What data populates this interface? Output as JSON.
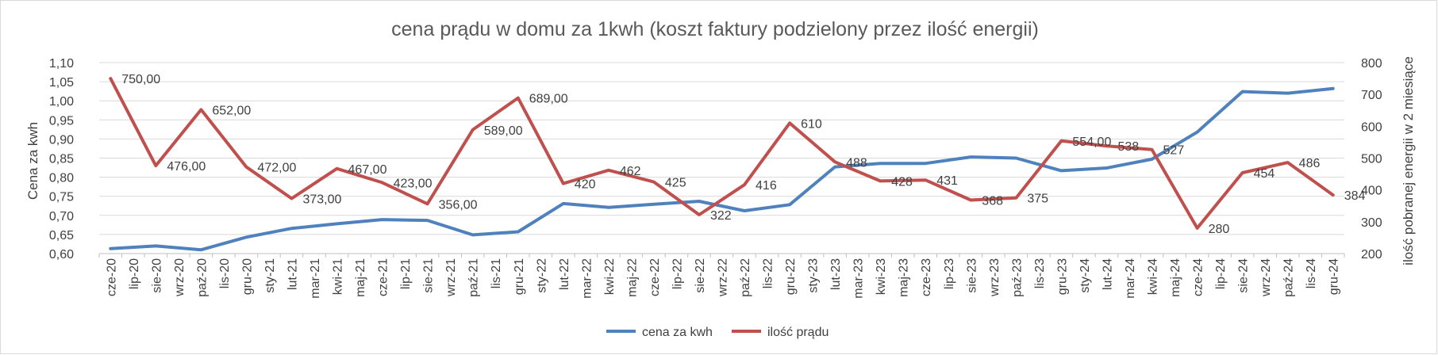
{
  "chart_data": {
    "type": "line",
    "title": "cena prądu w domu za 1kwh (koszt faktury podzielony przez ilość energii)",
    "ylabel": "Cena za kwh",
    "y2label": "ilość pobranej energii w 2 miesiące",
    "xlabel": "",
    "ylim": [
      0.6,
      1.1
    ],
    "yticks": [
      "0,60",
      "0,65",
      "0,70",
      "0,75",
      "0,80",
      "0,85",
      "0,90",
      "0,95",
      "1,00",
      "1,05",
      "1,10"
    ],
    "y2lim": [
      200,
      800
    ],
    "y2ticks": [
      "200",
      "300",
      "400",
      "500",
      "600",
      "700",
      "800"
    ],
    "grid": true,
    "legend_position": "bottom",
    "categories": [
      "cze-20",
      "lip-20",
      "sie-20",
      "wrz-20",
      "paź-20",
      "lis-20",
      "gru-20",
      "sty-21",
      "lut-21",
      "mar-21",
      "kwi-21",
      "maj-21",
      "cze-21",
      "lip-21",
      "sie-21",
      "wrz-21",
      "paź-21",
      "lis-21",
      "gru-21",
      "sty-22",
      "lut-22",
      "mar-22",
      "kwi-22",
      "maj-22",
      "cze-22",
      "lip-22",
      "sie-22",
      "wrz-22",
      "paź-22",
      "lis-22",
      "gru-22",
      "sty-23",
      "lut-23",
      "mar-23",
      "kwi-23",
      "maj-23",
      "cze-23",
      "lip-23",
      "sie-23",
      "wrz-23",
      "paź-23",
      "lis-23",
      "gru-23",
      "sty-24",
      "lut-24",
      "mar-24",
      "kwi-24",
      "maj-24",
      "cze-24",
      "lip-24",
      "sie-24",
      "wrz-24",
      "paź-24",
      "lis-24",
      "gru-24"
    ],
    "series": [
      {
        "name": "cena za kwh",
        "color": "#4f81bd",
        "axis": "left",
        "points": [
          {
            "x": "cze-20",
            "y": 0.613
          },
          {
            "x": "sie-20",
            "y": 0.62
          },
          {
            "x": "paź-20",
            "y": 0.61
          },
          {
            "x": "gru-20",
            "y": 0.643
          },
          {
            "x": "lut-21",
            "y": 0.666
          },
          {
            "x": "kwi-21",
            "y": 0.678
          },
          {
            "x": "cze-21",
            "y": 0.689
          },
          {
            "x": "sie-21",
            "y": 0.687
          },
          {
            "x": "paź-21",
            "y": 0.649
          },
          {
            "x": "gru-21",
            "y": 0.657
          },
          {
            "x": "lut-22",
            "y": 0.731
          },
          {
            "x": "kwi-22",
            "y": 0.721
          },
          {
            "x": "cze-22",
            "y": 0.729
          },
          {
            "x": "sie-22",
            "y": 0.737
          },
          {
            "x": "paź-22",
            "y": 0.712
          },
          {
            "x": "gru-22",
            "y": 0.728
          },
          {
            "x": "lut-23",
            "y": 0.827
          },
          {
            "x": "kwi-23",
            "y": 0.836
          },
          {
            "x": "cze-23",
            "y": 0.836
          },
          {
            "x": "sie-23",
            "y": 0.853
          },
          {
            "x": "paź-23",
            "y": 0.85
          },
          {
            "x": "gru-23",
            "y": 0.817
          },
          {
            "x": "lut-24",
            "y": 0.824
          },
          {
            "x": "kwi-24",
            "y": 0.847
          },
          {
            "x": "cze-24",
            "y": 0.918
          },
          {
            "x": "sie-24",
            "y": 1.024
          },
          {
            "x": "paź-24",
            "y": 1.02
          },
          {
            "x": "gru-24",
            "y": 1.032
          }
        ]
      },
      {
        "name": "ilość prądu",
        "color": "#c0504d",
        "axis": "right",
        "points": [
          {
            "x": "cze-20",
            "y": 750,
            "label": "750,00"
          },
          {
            "x": "sie-20",
            "y": 476,
            "label": "476,00"
          },
          {
            "x": "paź-20",
            "y": 652,
            "label": "652,00"
          },
          {
            "x": "gru-20",
            "y": 472,
            "label": "472,00"
          },
          {
            "x": "lut-21",
            "y": 373,
            "label": "373,00"
          },
          {
            "x": "kwi-21",
            "y": 467,
            "label": "467,00"
          },
          {
            "x": "cze-21",
            "y": 423,
            "label": "423,00"
          },
          {
            "x": "sie-21",
            "y": 356,
            "label": "356,00"
          },
          {
            "x": "paź-21",
            "y": 589,
            "label": "589,00"
          },
          {
            "x": "gru-21",
            "y": 689,
            "label": "689,00"
          },
          {
            "x": "lut-22",
            "y": 420,
            "label": "420"
          },
          {
            "x": "kwi-22",
            "y": 462,
            "label": "462"
          },
          {
            "x": "cze-22",
            "y": 425,
            "label": "425"
          },
          {
            "x": "sie-22",
            "y": 322,
            "label": "322"
          },
          {
            "x": "paź-22",
            "y": 416,
            "label": "416"
          },
          {
            "x": "gru-22",
            "y": 610,
            "label": "610"
          },
          {
            "x": "lut-23",
            "y": 488,
            "label": "488"
          },
          {
            "x": "kwi-23",
            "y": 428,
            "label": "428"
          },
          {
            "x": "cze-23",
            "y": 431,
            "label": "431"
          },
          {
            "x": "sie-23",
            "y": 368,
            "label": "368"
          },
          {
            "x": "paź-23",
            "y": 375,
            "label": "375"
          },
          {
            "x": "gru-23",
            "y": 554,
            "label": "554,00"
          },
          {
            "x": "lut-24",
            "y": 538,
            "label": "538"
          },
          {
            "x": "kwi-24",
            "y": 527,
            "label": "527"
          },
          {
            "x": "cze-24",
            "y": 280,
            "label": "280"
          },
          {
            "x": "sie-24",
            "y": 454,
            "label": "454"
          },
          {
            "x": "paź-24",
            "y": 486,
            "label": "486"
          },
          {
            "x": "gru-24",
            "y": 384,
            "label": "384"
          }
        ]
      }
    ]
  }
}
